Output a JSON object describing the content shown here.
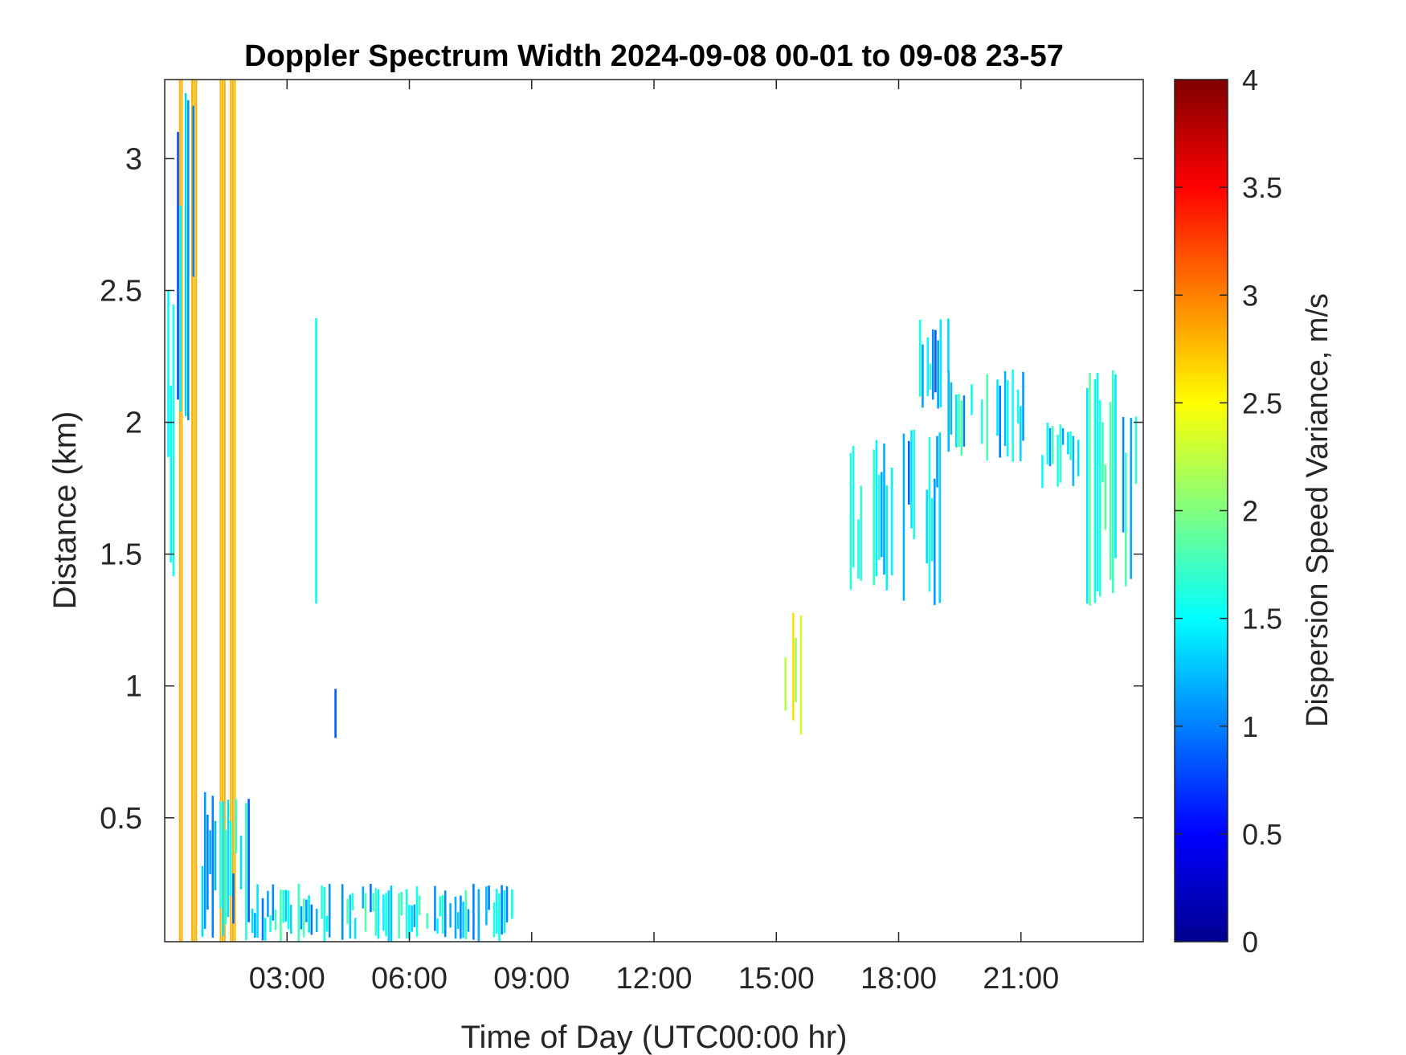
{
  "chart_data": {
    "type": "heatmap",
    "title": "Doppler Spectrum Width 2024-09-08 00-01 to 09-08 23-57",
    "xlabel": "Time of Day (UTC00:00 hr)",
    "ylabel": "Distance (km)",
    "xlim_hours": [
      0,
      24
    ],
    "ylim_km": [
      0.03,
      3.3
    ],
    "x_ticks": [
      {
        "value": 3,
        "label": "03:00"
      },
      {
        "value": 6,
        "label": "06:00"
      },
      {
        "value": 9,
        "label": "09:00"
      },
      {
        "value": 12,
        "label": "12:00"
      },
      {
        "value": 15,
        "label": "15:00"
      },
      {
        "value": 18,
        "label": "18:00"
      },
      {
        "value": 21,
        "label": "21:00"
      }
    ],
    "y_ticks": [
      {
        "value": 0.5,
        "label": "0.5"
      },
      {
        "value": 1,
        "label": "1"
      },
      {
        "value": 1.5,
        "label": "1.5"
      },
      {
        "value": 2,
        "label": "2"
      },
      {
        "value": 2.5,
        "label": "2.5"
      },
      {
        "value": 3,
        "label": "3"
      }
    ],
    "colorbar": {
      "label": "Dispersion Speed Variance, m/s",
      "colormap": "jet",
      "range": [
        0,
        4
      ],
      "ticks": [
        {
          "value": 0,
          "label": "0"
        },
        {
          "value": 0.5,
          "label": "0.5"
        },
        {
          "value": 1,
          "label": "1"
        },
        {
          "value": 1.5,
          "label": "1.5"
        },
        {
          "value": 2,
          "label": "2"
        },
        {
          "value": 2.5,
          "label": "2.5"
        },
        {
          "value": 3,
          "label": "3"
        },
        {
          "value": 3.5,
          "label": "3.5"
        },
        {
          "value": 4,
          "label": "4"
        }
      ]
    },
    "grid": false,
    "regions": [
      {
        "t0": 0.35,
        "t1": 0.45,
        "h0": 0.03,
        "h1": 3.3,
        "value": 2.8
      },
      {
        "t0": 0.65,
        "t1": 0.8,
        "h0": 0.03,
        "h1": 3.3,
        "value": 2.8
      },
      {
        "t0": 1.35,
        "t1": 1.5,
        "h0": 0.03,
        "h1": 3.3,
        "value": 2.8
      },
      {
        "t0": 1.6,
        "t1": 1.75,
        "h0": 0.03,
        "h1": 3.3,
        "value": 2.8
      },
      {
        "t0": 0.0,
        "t1": 0.3,
        "h0": 1.3,
        "h1": 2.65,
        "value": 1.3
      },
      {
        "t0": 0.3,
        "t1": 0.7,
        "h0": 2.0,
        "h1": 3.3,
        "value": 1.2
      },
      {
        "t0": 0.9,
        "t1": 2.1,
        "h0": 0.03,
        "h1": 0.6,
        "value": 1.3
      },
      {
        "t0": 2.0,
        "t1": 8.5,
        "h0": 0.03,
        "h1": 0.25,
        "value": 1.4
      },
      {
        "t0": 3.5,
        "t1": 3.7,
        "h0": 1.2,
        "h1": 2.4,
        "value": 1.3
      },
      {
        "t0": 4.1,
        "t1": 4.2,
        "h0": 0.8,
        "h1": 1.0,
        "value": 1.3
      },
      {
        "t0": 15.2,
        "t1": 15.6,
        "h0": 0.8,
        "h1": 1.3,
        "value": 2.3
      },
      {
        "t0": 16.8,
        "t1": 18.1,
        "h0": 1.35,
        "h1": 1.95,
        "value": 1.4
      },
      {
        "t0": 18.1,
        "t1": 19.1,
        "h0": 1.3,
        "h1": 2.0,
        "value": 1.3
      },
      {
        "t0": 18.5,
        "t1": 19.2,
        "h0": 2.05,
        "h1": 2.4,
        "value": 1.3
      },
      {
        "t0": 19.2,
        "t1": 21.1,
        "h0": 1.85,
        "h1": 2.2,
        "value": 1.4
      },
      {
        "t0": 21.5,
        "t1": 22.4,
        "h0": 1.75,
        "h1": 2.0,
        "value": 1.5
      },
      {
        "t0": 22.6,
        "t1": 23.9,
        "h0": 1.3,
        "h1": 2.2,
        "value": 1.5
      }
    ]
  }
}
